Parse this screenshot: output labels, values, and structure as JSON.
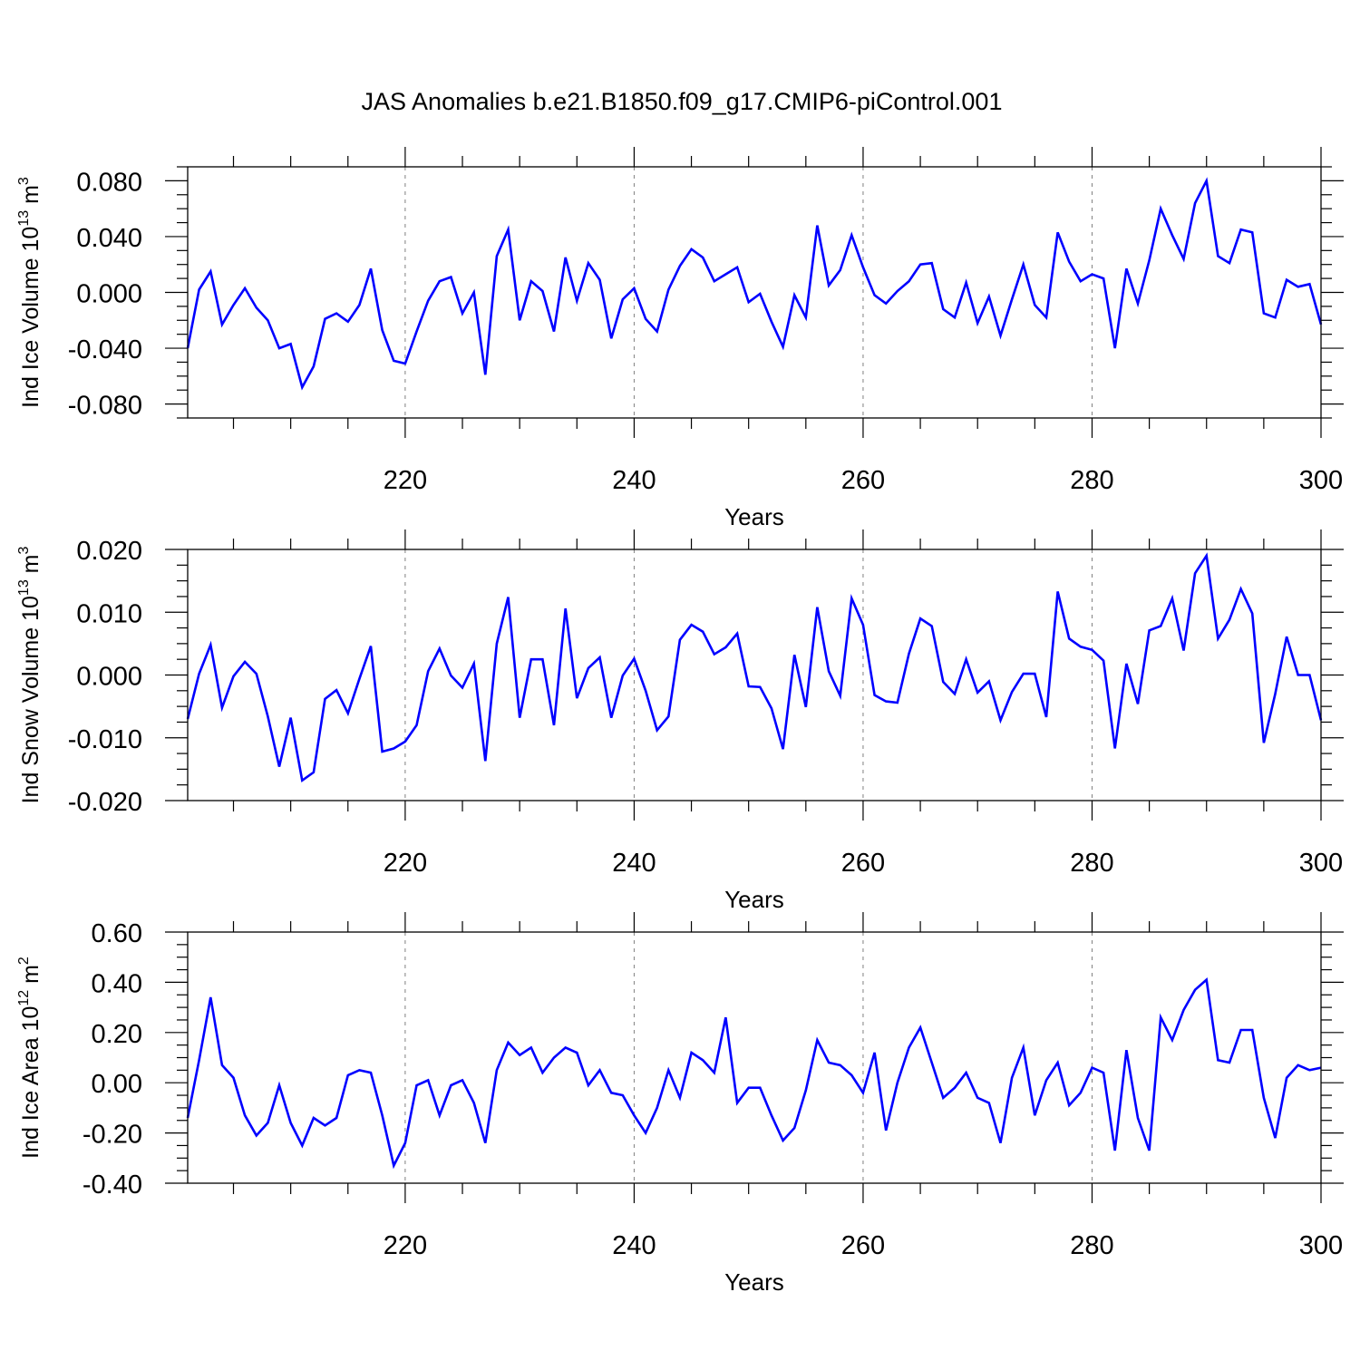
{
  "figure": {
    "title": "JAS Anomalies b.e21.B1850.f09_g17.CMIP6-piControl.001"
  },
  "chart_data": [
    {
      "type": "line",
      "ylabel": {
        "main": "Ind Ice Volume 10",
        "sup": "13",
        "unit": " m",
        "unit_sup": "3"
      },
      "xlabel": "Years",
      "xlim": [
        201,
        300
      ],
      "ylim": [
        -0.09,
        0.09
      ],
      "xticks": [
        "220",
        "240",
        "260",
        "280",
        "300"
      ],
      "yticks": [
        "0.080",
        "0.040",
        "0.000",
        "-0.040",
        "-0.080"
      ],
      "color": "#0000ff",
      "x_start": 201,
      "values": [
        -0.04,
        0.002,
        0.015,
        -0.023,
        -0.009,
        0.003,
        -0.011,
        -0.02,
        -0.04,
        -0.037,
        -0.068,
        -0.053,
        -0.019,
        -0.015,
        -0.021,
        -0.009,
        0.017,
        -0.027,
        -0.049,
        -0.051,
        -0.028,
        -0.006,
        0.008,
        0.011,
        -0.015,
        0.0,
        -0.059,
        0.026,
        0.045,
        -0.02,
        0.008,
        0.001,
        -0.028,
        0.025,
        -0.006,
        0.021,
        0.009,
        -0.033,
        -0.005,
        0.003,
        -0.019,
        -0.028,
        0.002,
        0.019,
        0.031,
        0.025,
        0.008,
        0.013,
        0.018,
        -0.007,
        -0.001,
        -0.021,
        -0.039,
        -0.002,
        -0.018,
        0.048,
        0.005,
        0.016,
        0.041,
        0.018,
        -0.002,
        -0.008,
        0.001,
        0.008,
        0.02,
        0.021,
        -0.012,
        -0.018,
        0.007,
        -0.022,
        -0.003,
        -0.031,
        -0.005,
        0.02,
        -0.009,
        -0.018,
        0.043,
        0.022,
        0.008,
        0.013,
        0.01,
        -0.04,
        0.017,
        -0.008,
        0.023,
        0.06,
        0.041,
        0.024,
        0.064,
        0.08,
        0.026,
        0.021,
        0.045,
        0.043,
        -0.015,
        -0.018,
        0.009,
        0.004,
        0.006,
        -0.023
      ]
    },
    {
      "type": "line",
      "ylabel": {
        "main": "Ind Snow Volume 10",
        "sup": "13",
        "unit": " m",
        "unit_sup": "3"
      },
      "xlabel": "Years",
      "xlim": [
        201,
        300
      ],
      "ylim": [
        -0.02,
        0.02
      ],
      "xticks": [
        "220",
        "240",
        "260",
        "280",
        "300"
      ],
      "yticks": [
        "0.020",
        "0.010",
        "0.000",
        "-0.010",
        "-0.020"
      ],
      "color": "#0000ff",
      "x_start": 201,
      "values": [
        -0.007,
        0.0002,
        0.0048,
        -0.0052,
        -0.0002,
        0.0021,
        0.0002,
        -0.0066,
        -0.0146,
        -0.0068,
        -0.0168,
        -0.0155,
        -0.0038,
        -0.0024,
        -0.0061,
        -0.0006,
        0.0046,
        -0.0122,
        -0.0117,
        -0.0106,
        -0.008,
        0.0006,
        0.0042,
        -0.0001,
        -0.002,
        0.0018,
        -0.0137,
        0.005,
        0.0124,
        -0.0068,
        0.0025,
        0.0025,
        -0.008,
        0.0106,
        -0.0037,
        0.0011,
        0.0028,
        -0.0068,
        -0.0001,
        0.0026,
        -0.0025,
        -0.0088,
        -0.0066,
        0.0056,
        0.008,
        0.0069,
        0.0033,
        0.0044,
        0.0066,
        -0.0018,
        -0.0019,
        -0.0053,
        -0.0118,
        0.0032,
        -0.0051,
        0.0108,
        0.0006,
        -0.0033,
        0.0122,
        0.008,
        -0.0032,
        -0.0042,
        -0.0044,
        0.0034,
        0.009,
        0.0078,
        -0.0011,
        -0.003,
        0.0025,
        -0.0028,
        -0.001,
        -0.0072,
        -0.0027,
        0.0002,
        0.0002,
        -0.0067,
        0.0133,
        0.0058,
        0.0045,
        0.004,
        0.0023,
        -0.0117,
        0.0018,
        -0.0046,
        0.0071,
        0.0078,
        0.0122,
        0.0039,
        0.0162,
        0.019,
        0.0058,
        0.0088,
        0.0137,
        0.0098,
        -0.0108,
        -0.003,
        0.0061,
        0.0,
        0.0,
        -0.0072
      ]
    },
    {
      "type": "line",
      "ylabel": {
        "main": "Ind Ice Area 10",
        "sup": "12",
        "unit": " m",
        "unit_sup": "2"
      },
      "xlabel": "Years",
      "xlim": [
        201,
        300
      ],
      "ylim": [
        -0.4,
        0.6
      ],
      "xticks": [
        "220",
        "240",
        "260",
        "280",
        "300"
      ],
      "yticks": [
        "0.60",
        "0.40",
        "0.20",
        "0.00",
        "-0.20",
        "-0.40"
      ],
      "color": "#0000ff",
      "x_start": 201,
      "values": [
        -0.14,
        0.09,
        0.34,
        0.07,
        0.02,
        -0.13,
        -0.21,
        -0.16,
        -0.01,
        -0.16,
        -0.25,
        -0.14,
        -0.17,
        -0.14,
        0.03,
        0.05,
        0.04,
        -0.13,
        -0.33,
        -0.24,
        -0.01,
        0.01,
        -0.13,
        -0.01,
        0.01,
        -0.08,
        -0.24,
        0.05,
        0.16,
        0.11,
        0.14,
        0.04,
        0.1,
        0.14,
        0.12,
        -0.01,
        0.05,
        -0.04,
        -0.05,
        -0.13,
        -0.2,
        -0.1,
        0.05,
        -0.06,
        0.12,
        0.09,
        0.04,
        0.26,
        -0.08,
        -0.02,
        -0.02,
        -0.13,
        -0.23,
        -0.18,
        -0.03,
        0.17,
        0.08,
        0.07,
        0.03,
        -0.04,
        0.12,
        -0.19,
        0.0,
        0.14,
        0.22,
        0.08,
        -0.06,
        -0.02,
        0.04,
        -0.06,
        -0.08,
        -0.24,
        0.02,
        0.14,
        -0.13,
        0.01,
        0.08,
        -0.09,
        -0.04,
        0.06,
        0.04,
        -0.27,
        0.13,
        -0.14,
        -0.27,
        0.26,
        0.17,
        0.29,
        0.37,
        0.41,
        0.09,
        0.08,
        0.21,
        0.21,
        -0.06,
        -0.22,
        0.02,
        0.07,
        0.05,
        0.06
      ]
    }
  ]
}
